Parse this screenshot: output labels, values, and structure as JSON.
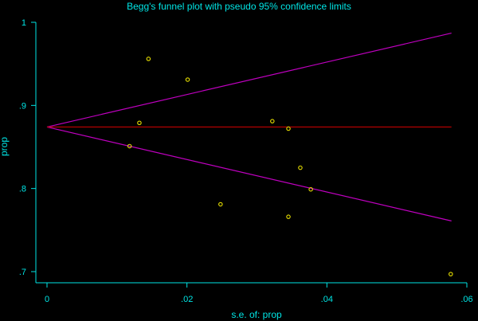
{
  "chart_data": {
    "type": "scatter",
    "title": "Begg's funnel plot with pseudo 95% confidence limits",
    "xlabel": "s.e. of: prop",
    "ylabel": "prop",
    "xlim": [
      0,
      0.06
    ],
    "ylim": [
      0.7,
      1
    ],
    "x_ticks": [
      {
        "value": 0,
        "label": "0"
      },
      {
        "value": 0.02,
        "label": ".02"
      },
      {
        "value": 0.04,
        "label": ".04"
      },
      {
        "value": 0.06,
        "label": ".06"
      }
    ],
    "y_ticks": [
      {
        "value": 0.7,
        "label": ".7"
      },
      {
        "value": 0.8,
        "label": ".8"
      },
      {
        "value": 0.9,
        "label": ".9"
      },
      {
        "value": 1,
        "label": "1"
      }
    ],
    "pooled_estimate": 0.874,
    "confidence_limits": {
      "x": [
        0,
        0.0578
      ],
      "upper": [
        0.874,
        0.987
      ],
      "lower": [
        0.874,
        0.761
      ]
    },
    "points": [
      {
        "x": 0.0145,
        "y": 0.956
      },
      {
        "x": 0.0201,
        "y": 0.931
      },
      {
        "x": 0.0132,
        "y": 0.879
      },
      {
        "x": 0.0118,
        "y": 0.851
      },
      {
        "x": 0.0322,
        "y": 0.881
      },
      {
        "x": 0.0345,
        "y": 0.872
      },
      {
        "x": 0.0362,
        "y": 0.825
      },
      {
        "x": 0.0377,
        "y": 0.799
      },
      {
        "x": 0.0248,
        "y": 0.781
      },
      {
        "x": 0.0345,
        "y": 0.766
      },
      {
        "x": 0.0577,
        "y": 0.697
      }
    ],
    "colors": {
      "background": "#000000",
      "axis": "#00e5e5",
      "text": "#00e5e5",
      "points": "#e8e000",
      "limits": "#c000c0",
      "pooled": "#c00000"
    }
  }
}
